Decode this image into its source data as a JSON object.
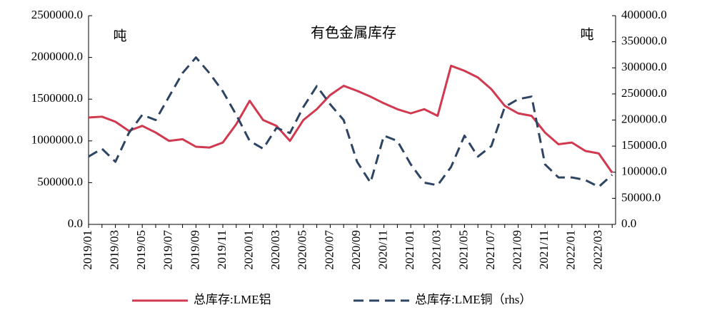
{
  "chart_data": {
    "type": "line",
    "title": "有色金属库存",
    "y_unit_left": "吨",
    "y_unit_right": "吨",
    "categories": [
      "2019/01",
      null,
      "2019/03",
      null,
      "2019/05",
      null,
      "2019/07",
      null,
      "2019/09",
      null,
      "2019/11",
      null,
      "2020/01",
      null,
      "2020/03",
      null,
      "2020/05",
      null,
      "2020/07",
      null,
      "2020/09",
      null,
      "2020/11",
      null,
      "2021/01",
      null,
      "2021/03",
      null,
      "2021/05",
      null,
      "2021/07",
      null,
      "2021/09",
      null,
      "2021/11",
      null,
      "2022/01",
      null,
      "2022/03",
      null
    ],
    "series": [
      {
        "name": "总库存:LME铝",
        "color": "#d0394f",
        "dash": false,
        "values": [
          1280000,
          1290000,
          1230000,
          1120000,
          1180000,
          1100000,
          1000000,
          1020000,
          930000,
          920000,
          980000,
          1200000,
          1480000,
          1250000,
          1180000,
          1000000,
          1250000,
          1380000,
          1550000,
          1660000,
          1600000,
          1530000,
          1450000,
          1380000,
          1330000,
          1380000,
          1300000,
          1900000,
          1840000,
          1760000,
          1620000,
          1420000,
          1330000,
          1300000,
          1100000,
          960000,
          980000,
          880000,
          850000,
          620000
        ]
      },
      {
        "name": "总库存:LME铜（rhs）",
        "color": "#2e4463",
        "dash": true,
        "axis": "y2",
        "values": [
          130000,
          145000,
          120000,
          175000,
          210000,
          200000,
          245000,
          290000,
          320000,
          290000,
          255000,
          210000,
          160000,
          145000,
          185000,
          175000,
          225000,
          265000,
          230000,
          200000,
          120000,
          80000,
          170000,
          160000,
          115000,
          80000,
          75000,
          110000,
          170000,
          130000,
          150000,
          225000,
          240000,
          245000,
          115000,
          90000,
          90000,
          85000,
          72000,
          95000
        ]
      }
    ],
    "ylim": [
      0,
      2500000
    ],
    "yticks": [
      {
        "value": 0,
        "label": "0.0"
      },
      {
        "value": 500000,
        "label": "500000.0"
      },
      {
        "value": 1000000,
        "label": "1000000.0"
      },
      {
        "value": 1500000,
        "label": "1500000.0"
      },
      {
        "value": 2000000,
        "label": "2000000.0"
      },
      {
        "value": 2500000,
        "label": "2500000.0"
      }
    ],
    "y2lim": [
      0,
      400000
    ],
    "y2ticks": [
      {
        "value": 0,
        "label": "0.0"
      },
      {
        "value": 50000,
        "label": "50000.0"
      },
      {
        "value": 100000,
        "label": "100000.0"
      },
      {
        "value": 150000,
        "label": "150000.0"
      },
      {
        "value": 200000,
        "label": "200000.0"
      },
      {
        "value": 250000,
        "label": "250000.0"
      },
      {
        "value": 300000,
        "label": "300000.0"
      },
      {
        "value": 350000,
        "label": "350000.0"
      },
      {
        "value": 400000,
        "label": "400000.0"
      }
    ],
    "grid": false
  }
}
